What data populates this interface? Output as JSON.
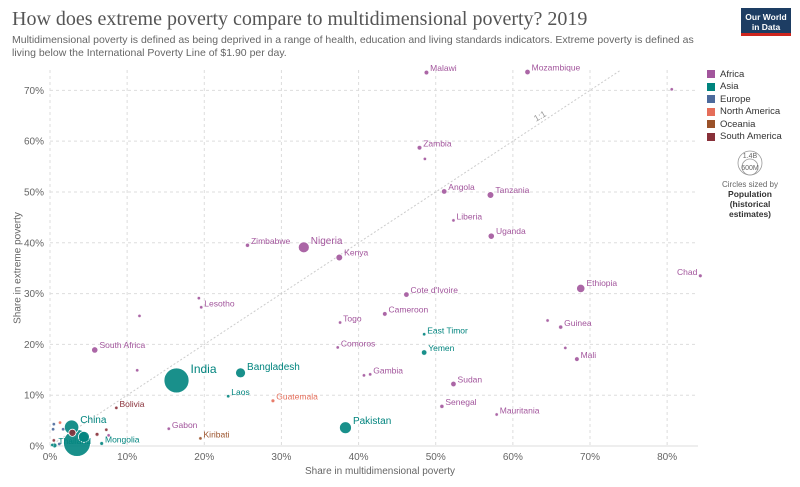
{
  "header": {
    "title": "How does extreme poverty compare to multidimensional poverty? 2019",
    "subtitle": "Multidimensional poverty is defined as being deprived in a range of health, education and living standards indicators. Extreme poverty is defined as living below the International Poverty Line of $1.90 per day.",
    "logo_line1": "Our World",
    "logo_line2": "in Data"
  },
  "legend": {
    "items": [
      {
        "label": "Africa",
        "color": "#a2559c"
      },
      {
        "label": "Asia",
        "color": "#00847e"
      },
      {
        "label": "Europe",
        "color": "#4c6a9c"
      },
      {
        "label": "North America",
        "color": "#e56e5a"
      },
      {
        "label": "Oceania",
        "color": "#9a5129"
      },
      {
        "label": "South America",
        "color": "#883039"
      }
    ],
    "size_value": "1.4B",
    "size_value2": "600M",
    "size_note1": "Circles sized by",
    "size_note2": "Population",
    "size_note3": "(historical estimates)"
  },
  "chart_data": {
    "type": "scatter",
    "xlabel": "Share in multidimensional poverty",
    "ylabel": "Share in extreme poverty",
    "xlim": [
      0,
      84
    ],
    "ylim": [
      0,
      74
    ],
    "x_ticks": [
      0,
      10,
      20,
      30,
      40,
      50,
      60,
      70,
      80
    ],
    "y_ticks": [
      0,
      10,
      20,
      30,
      40,
      50,
      60,
      70
    ],
    "x_tick_labels": [
      "0%",
      "10%",
      "20%",
      "30%",
      "40%",
      "50%",
      "60%",
      "70%",
      "80%"
    ],
    "y_tick_labels": [
      "0%",
      "10%",
      "20%",
      "30%",
      "40%",
      "50%",
      "60%",
      "70%"
    ],
    "reference_line_label": "1:1",
    "grid": true,
    "points": [
      {
        "label": "Malawi",
        "x": 48.8,
        "y": 73.5,
        "region": "Africa",
        "size": 2.2
      },
      {
        "label": "Mozambique",
        "x": 61.9,
        "y": 73.6,
        "region": "Africa",
        "size": 2.6
      },
      {
        "label": "",
        "x": 80.6,
        "y": 70.2,
        "region": "Africa",
        "size": 1.6
      },
      {
        "label": "Zambia",
        "x": 47.9,
        "y": 58.7,
        "region": "Africa",
        "size": 2.2
      },
      {
        "label": "",
        "x": 48.6,
        "y": 56.5,
        "region": "Africa",
        "size": 1.6
      },
      {
        "label": "Angola",
        "x": 51.1,
        "y": 50.1,
        "region": "Africa",
        "size": 2.6
      },
      {
        "label": "Tanzania",
        "x": 57.1,
        "y": 49.4,
        "region": "Africa",
        "size": 3.4
      },
      {
        "label": "Liberia",
        "x": 52.3,
        "y": 44.4,
        "region": "Africa",
        "size": 1.6
      },
      {
        "label": "Uganda",
        "x": 57.2,
        "y": 41.3,
        "region": "Africa",
        "size": 3.2
      },
      {
        "label": "Zimbabwe",
        "x": 25.6,
        "y": 39.5,
        "region": "Africa",
        "size": 2.0
      },
      {
        "label": "Nigeria",
        "x": 32.9,
        "y": 39.1,
        "region": "Africa",
        "size": 5.5
      },
      {
        "label": "Kenya",
        "x": 37.5,
        "y": 37.1,
        "region": "Africa",
        "size": 3.4
      },
      {
        "label": "Chad",
        "x": 84.3,
        "y": 33.5,
        "region": "Africa",
        "size": 1.8
      },
      {
        "label": "Ethiopia",
        "x": 68.8,
        "y": 31.0,
        "region": "Africa",
        "size": 4.2
      },
      {
        "label": "Cote d'Ivoire",
        "x": 46.2,
        "y": 29.8,
        "region": "Africa",
        "size": 2.6
      },
      {
        "label": "",
        "x": 19.3,
        "y": 29.1,
        "region": "Africa",
        "size": 1.6
      },
      {
        "label": "Lesotho",
        "x": 19.6,
        "y": 27.3,
        "region": "Africa",
        "size": 1.6
      },
      {
        "label": "Cameroon",
        "x": 43.4,
        "y": 26.0,
        "region": "Africa",
        "size": 2.2
      },
      {
        "label": "",
        "x": 11.6,
        "y": 25.6,
        "region": "Africa",
        "size": 1.6
      },
      {
        "label": "",
        "x": 64.5,
        "y": 24.7,
        "region": "Africa",
        "size": 1.6
      },
      {
        "label": "Togo",
        "x": 37.6,
        "y": 24.3,
        "region": "Africa",
        "size": 1.6
      },
      {
        "label": "Guinea",
        "x": 66.2,
        "y": 23.4,
        "region": "Africa",
        "size": 2.0
      },
      {
        "label": "East Timor",
        "x": 48.5,
        "y": 22.0,
        "region": "Asia",
        "size": 1.6
      },
      {
        "label": "Comoros",
        "x": 37.3,
        "y": 19.4,
        "region": "Africa",
        "size": 1.6
      },
      {
        "label": "",
        "x": 66.8,
        "y": 19.3,
        "region": "Africa",
        "size": 1.6
      },
      {
        "label": "South Africa",
        "x": 5.8,
        "y": 18.9,
        "region": "Africa",
        "size": 3.2
      },
      {
        "label": "Yemen",
        "x": 48.5,
        "y": 18.4,
        "region": "Asia",
        "size": 2.6
      },
      {
        "label": "Mali",
        "x": 68.3,
        "y": 17.1,
        "region": "Africa",
        "size": 2.2
      },
      {
        "label": "",
        "x": 11.3,
        "y": 14.9,
        "region": "Africa",
        "size": 1.6
      },
      {
        "label": "Gambia",
        "x": 41.5,
        "y": 14.1,
        "region": "Africa",
        "size": 1.6
      },
      {
        "label": "",
        "x": 40.7,
        "y": 13.9,
        "region": "Africa",
        "size": 1.6
      },
      {
        "label": "India",
        "x": 16.4,
        "y": 12.9,
        "region": "Asia",
        "size": 12.5
      },
      {
        "label": "Bangladesh",
        "x": 24.7,
        "y": 14.4,
        "region": "Asia",
        "size": 5.0
      },
      {
        "label": "Sudan",
        "x": 52.3,
        "y": 12.2,
        "region": "Africa",
        "size": 2.6
      },
      {
        "label": "Laos",
        "x": 23.1,
        "y": 9.8,
        "region": "Asia",
        "size": 1.6
      },
      {
        "label": "Guatemala",
        "x": 28.9,
        "y": 8.9,
        "region": "North America",
        "size": 1.8
      },
      {
        "label": "Senegal",
        "x": 50.8,
        "y": 7.8,
        "region": "Africa",
        "size": 2.0
      },
      {
        "label": "Bolivia",
        "x": 8.6,
        "y": 7.5,
        "region": "South America",
        "size": 1.6
      },
      {
        "label": "Mauritania",
        "x": 57.9,
        "y": 6.2,
        "region": "Africa",
        "size": 1.6
      },
      {
        "label": "Pakistan",
        "x": 38.3,
        "y": 3.6,
        "region": "Asia",
        "size": 6.0
      },
      {
        "label": "Gabon",
        "x": 15.4,
        "y": 3.4,
        "region": "Africa",
        "size": 1.6
      },
      {
        "label": "Kiribati",
        "x": 19.5,
        "y": 1.5,
        "region": "Oceania",
        "size": 1.6
      },
      {
        "label": "China",
        "x": 2.8,
        "y": 3.7,
        "region": "Asia",
        "size": 7.2
      },
      {
        "label": "Mongolia",
        "x": 6.7,
        "y": 0.5,
        "region": "Asia",
        "size": 1.8
      },
      {
        "label": "Thailand",
        "x": 0.6,
        "y": 0.1,
        "region": "Asia",
        "size": 2.2
      },
      {
        "label": "",
        "x": 3.5,
        "y": 0.6,
        "region": "Asia",
        "size": 13.5
      },
      {
        "label": "",
        "x": 4.4,
        "y": 1.8,
        "region": "Asia",
        "size": 5.5
      },
      {
        "label": "",
        "x": 2.9,
        "y": 2.6,
        "region": "South America",
        "size": 3.6
      },
      {
        "label": "",
        "x": 1.3,
        "y": 4.6,
        "region": "North America",
        "size": 1.6
      },
      {
        "label": "",
        "x": 0.5,
        "y": 4.3,
        "region": "Europe",
        "size": 1.6
      },
      {
        "label": "",
        "x": 0.5,
        "y": 1.1,
        "region": "South America",
        "size": 1.6
      },
      {
        "label": "",
        "x": 1.7,
        "y": 3.3,
        "region": "Europe",
        "size": 1.6
      },
      {
        "label": "",
        "x": 0.4,
        "y": 3.3,
        "region": "Europe",
        "size": 1.6
      },
      {
        "label": "",
        "x": 6.1,
        "y": 2.3,
        "region": "South America",
        "size": 1.8
      },
      {
        "label": "",
        "x": 7.3,
        "y": 3.2,
        "region": "South America",
        "size": 1.6
      },
      {
        "label": "",
        "x": 7.6,
        "y": 2.1,
        "region": "Africa",
        "size": 1.6
      },
      {
        "label": "",
        "x": 1.2,
        "y": 0.4,
        "region": "Europe",
        "size": 1.6
      },
      {
        "label": "",
        "x": 0.3,
        "y": 0.2,
        "region": "Asia",
        "size": 1.6
      }
    ]
  }
}
